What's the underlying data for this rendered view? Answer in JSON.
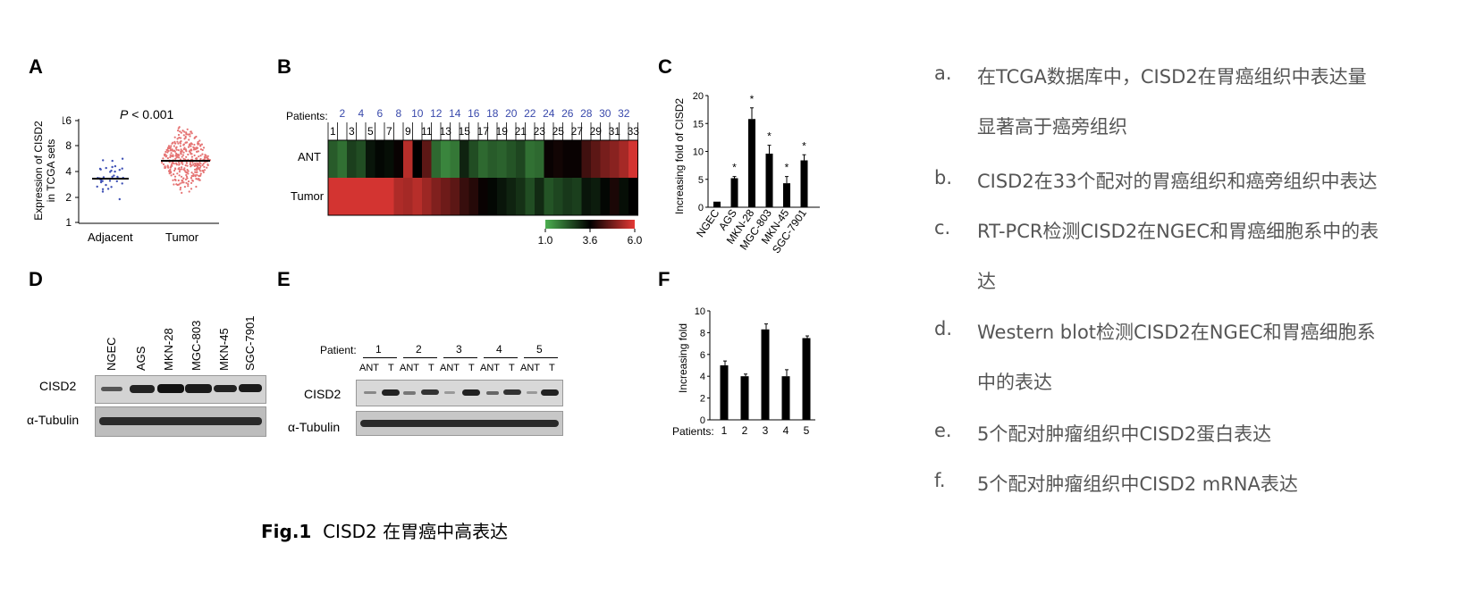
{
  "figure": {
    "caption_bold": "Fig.1",
    "caption_text": "CISD2 在胃癌中高表达"
  },
  "panels": {
    "A": {
      "label": "A",
      "pvalue_italic": "P",
      "pvalue_rest": " < 0.001",
      "ylabel_line1": "Expression of CISD2",
      "ylabel_line2": "in TCGA sets",
      "yticks": [
        "16",
        "8",
        "4",
        "2",
        "1"
      ],
      "groups": [
        "Adjacent",
        "Tumor"
      ]
    },
    "B": {
      "label": "B",
      "patients_label": "Patients:",
      "even_numbers": [
        "2",
        "4",
        "6",
        "8",
        "10",
        "12",
        "14",
        "16",
        "18",
        "20",
        "22",
        "24",
        "26",
        "28",
        "30",
        "32"
      ],
      "odd_numbers": [
        "1",
        "3",
        "5",
        "7",
        "9",
        "11",
        "13",
        "15",
        "17",
        "19",
        "21",
        "23",
        "25",
        "27",
        "29",
        "31",
        "33"
      ],
      "rows": [
        "ANT",
        "Tumor"
      ],
      "scale_ticks": [
        "1.0",
        "3.6",
        "6.0"
      ],
      "colors": {
        "low": "#4caf50",
        "mid": "#000000",
        "high": "#e53935"
      }
    },
    "C": {
      "label": "C",
      "ylabel": "Increasing fold of CISD2",
      "yticks": [
        "20",
        "15",
        "10",
        "5",
        "0"
      ],
      "categories": [
        "NGEC",
        "AGS",
        "MKN-28",
        "MGC-803",
        "MKN-45",
        "SGC-7901"
      ],
      "sig": "*"
    },
    "D": {
      "label": "D",
      "lanes": [
        "NGEC",
        "AGS",
        "MKN-28",
        "MGC-803",
        "MKN-45",
        "SGC-7901"
      ],
      "rows": [
        "CISD2",
        "α-Tubulin"
      ]
    },
    "E": {
      "label": "E",
      "patient_label": "Patient:",
      "patients": [
        "1",
        "2",
        "3",
        "4",
        "5"
      ],
      "ant": "ANT",
      "t": "T",
      "rows": [
        "CISD2",
        "α-Tubulin"
      ]
    },
    "F": {
      "label": "F",
      "ylabel": "Increasing fold",
      "yticks": [
        "10",
        "8",
        "6",
        "4",
        "2",
        "0"
      ],
      "patients_label": "Patients:",
      "categories": [
        "1",
        "2",
        "3",
        "4",
        "5"
      ]
    }
  },
  "legend": [
    {
      "letter": "a.",
      "lines": [
        "在TCGA数据库中，CISD2在胃癌组织中表达量",
        "显著高于癌旁组织"
      ]
    },
    {
      "letter": "b.",
      "lines": [
        "CISD2在33个配对的胃癌组织和癌旁组织中表达"
      ]
    },
    {
      "letter": "c.",
      "lines": [
        "RT-PCR检测CISD2在NGEC和胃癌细胞系中的表",
        "达"
      ]
    },
    {
      "letter": "d.",
      "lines": [
        "Western blot检测CISD2在NGEC和胃癌细胞系",
        "中的表达"
      ]
    },
    {
      "letter": "e.",
      "lines": [
        "5个配对肿瘤组织中CISD2蛋白表达"
      ]
    },
    {
      "letter": "f.",
      "lines": [
        "5个配对肿瘤组织中CISD2 mRNA表达"
      ]
    }
  ],
  "chart_data": [
    {
      "type": "bar",
      "title": "",
      "ylabel": "Increasing fold of CISD2",
      "categories": [
        "NGEC",
        "AGS",
        "MKN-28",
        "MGC-803",
        "MKN-45",
        "SGC-7901"
      ],
      "values": [
        1,
        5.2,
        15.8,
        9.6,
        4.3,
        8.4
      ],
      "errors": [
        0,
        0.3,
        2.0,
        1.5,
        1.2,
        1.0
      ],
      "significant": [
        false,
        true,
        true,
        true,
        true,
        true
      ],
      "ylim": [
        0,
        20
      ]
    },
    {
      "type": "bar",
      "title": "",
      "xlabel": "Patients:",
      "ylabel": "Increasing fold",
      "categories": [
        "1",
        "2",
        "3",
        "4",
        "5"
      ],
      "values": [
        5.0,
        4.0,
        8.3,
        4.0,
        7.5
      ],
      "errors": [
        0.4,
        0.2,
        0.5,
        0.6,
        0.2
      ],
      "ylim": [
        0,
        10
      ]
    },
    {
      "type": "heatmap",
      "title": "",
      "rows": [
        "ANT",
        "Tumor"
      ],
      "columns": [
        "1",
        "2",
        "3",
        "4",
        "5",
        "6",
        "7",
        "8",
        "9",
        "10",
        "11",
        "12",
        "13",
        "14",
        "15",
        "16",
        "17",
        "18",
        "19",
        "20",
        "21",
        "22",
        "23",
        "24",
        "25",
        "26",
        "27",
        "28",
        "29",
        "30",
        "31",
        "32",
        "33"
      ],
      "values": [
        [
          2.2,
          1.9,
          2.6,
          2.4,
          3.2,
          3.4,
          3.3,
          3.6,
          5.5,
          3.5,
          4.5,
          2.0,
          1.6,
          1.8,
          3.0,
          2.4,
          2.0,
          2.2,
          2.1,
          2.3,
          2.5,
          1.9,
          2.0,
          3.6,
          3.7,
          3.6,
          3.6,
          4.2,
          4.5,
          4.8,
          5.0,
          5.3,
          5.8
        ],
        [
          5.8,
          5.8,
          5.8,
          5.8,
          5.8,
          5.8,
          5.8,
          5.4,
          5.3,
          5.5,
          5.2,
          4.9,
          4.7,
          4.5,
          4.1,
          3.9,
          3.6,
          3.4,
          3.2,
          3.0,
          2.8,
          2.4,
          2.9,
          2.3,
          2.5,
          2.7,
          2.6,
          3.2,
          3.1,
          3.4,
          3.8,
          3.3,
          3.5
        ]
      ],
      "scale": [
        1.0,
        6.0
      ]
    }
  ]
}
